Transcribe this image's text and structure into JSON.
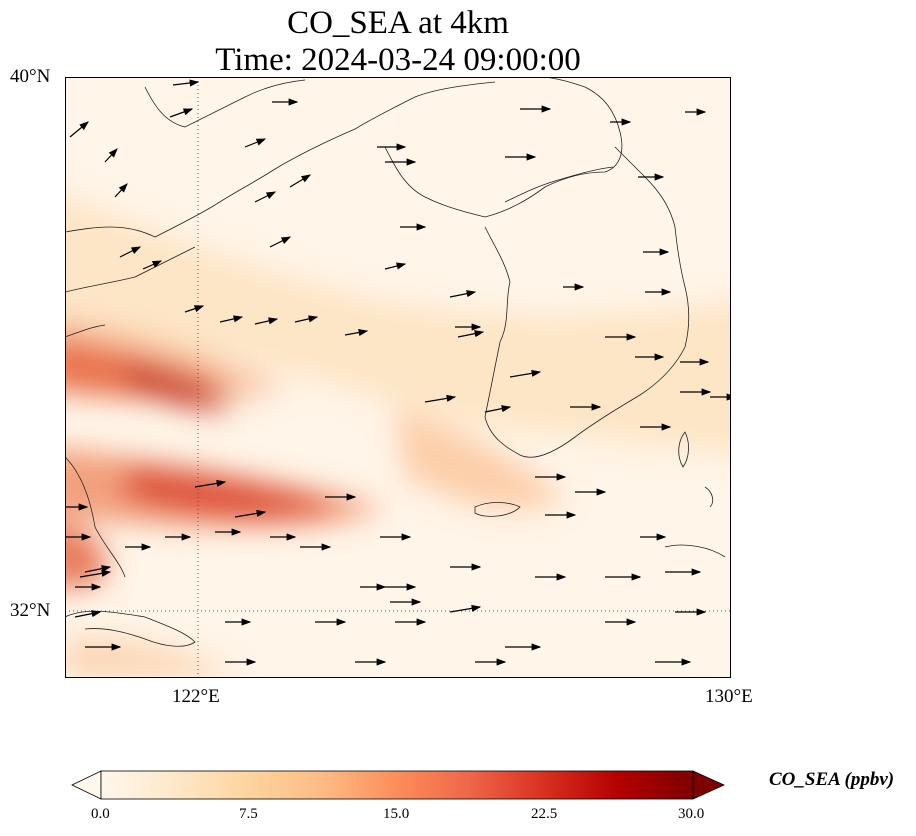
{
  "title_line1": "CO_SEA at 4km",
  "title_line2": "Time: 2024-03-24 09:00:00",
  "map": {
    "lat_ticks": [
      {
        "value": 40,
        "label": "40°N"
      },
      {
        "value": 32,
        "label": "32°N"
      }
    ],
    "lon_ticks": [
      {
        "value": 122,
        "label": "122°E"
      },
      {
        "value": 130,
        "label": "130°E"
      }
    ],
    "extent": {
      "lon_min": 120,
      "lon_max": 130,
      "lat_min": 31,
      "lat_max": 40
    },
    "gridlines": "dotted at 122°E and 32°N",
    "vectors": "wind arrows, predominantly from the west-southwest"
  },
  "colorbar": {
    "label": "CO_SEA (ppbv)",
    "ticks": [
      "0.0",
      "7.5",
      "15.0",
      "22.5",
      "30.0"
    ],
    "min": 0,
    "max": 30,
    "extend": "both",
    "colormap": "OrRd",
    "colors": [
      "#fff7ec",
      "#fee8c8",
      "#fdd49e",
      "#fdbb84",
      "#fc8d59",
      "#ef6548",
      "#d7301f",
      "#b30000",
      "#7f0000"
    ]
  }
}
